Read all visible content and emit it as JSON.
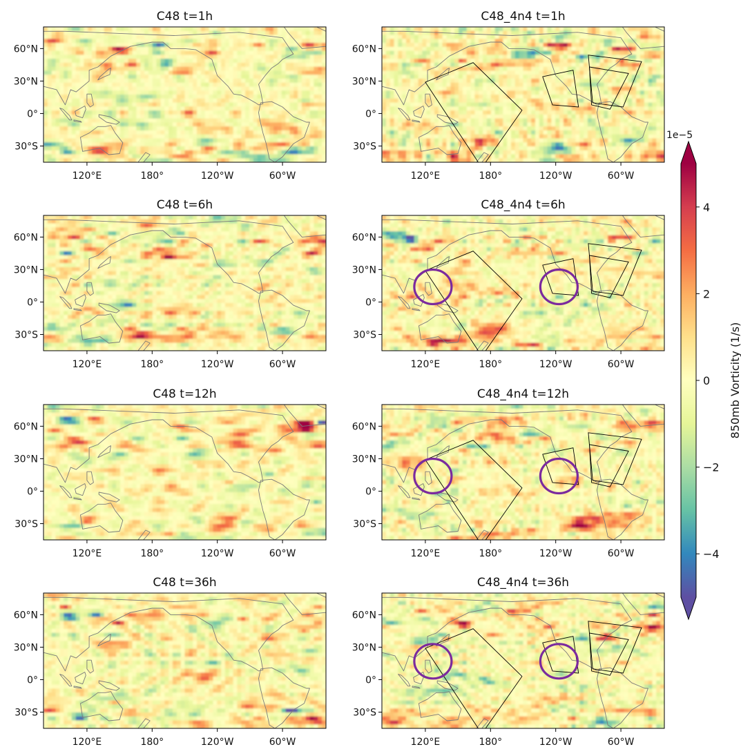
{
  "chart_data": {
    "type": "heatmap",
    "colorbar": {
      "label": "850mb Vorticity (1/s)",
      "offset_text": "1e−5",
      "ticks": [
        4,
        2,
        0,
        -2,
        -4
      ],
      "tick_labels": [
        "4",
        "2",
        "0",
        "−2",
        "−4"
      ],
      "range": [
        -5,
        5
      ],
      "colormap": "Spectral_r",
      "extend": "both",
      "stops": [
        "#5e4fa2",
        "#3288bd",
        "#66c2a5",
        "#abdda4",
        "#e6f598",
        "#ffffbf",
        "#fee08b",
        "#fdae61",
        "#f46d43",
        "#d53e4f",
        "#9e0142"
      ]
    },
    "lat_tick_labels": [
      "60°N",
      "30°N",
      "0°",
      "30°S"
    ],
    "lon_tick_labels": [
      "120°E",
      "180°",
      "120°W",
      "60°W"
    ],
    "lat_ticks": [
      60,
      30,
      0,
      -30
    ],
    "lon_ticks": [
      120,
      180,
      240,
      300
    ],
    "extent": {
      "lon": [
        80,
        340
      ],
      "lat": [
        -45,
        80
      ]
    },
    "panels": [
      {
        "title": "C48 t=1h",
        "row": 0,
        "col": 0,
        "nests": false,
        "circles": []
      },
      {
        "title": "C48_4n4 t=1h",
        "row": 0,
        "col": 1,
        "nests": true,
        "circles": []
      },
      {
        "title": "C48 t=6h",
        "row": 1,
        "col": 0,
        "nests": false,
        "circles": []
      },
      {
        "title": "C48_4n4 t=6h",
        "row": 1,
        "col": 1,
        "nests": true,
        "circles": [
          {
            "lon": 127,
            "lat": 14
          },
          {
            "lon": 243,
            "lat": 14
          }
        ]
      },
      {
        "title": "C48 t=12h",
        "row": 2,
        "col": 0,
        "nests": false,
        "circles": []
      },
      {
        "title": "C48_4n4 t=12h",
        "row": 2,
        "col": 1,
        "nests": true,
        "circles": [
          {
            "lon": 127,
            "lat": 14
          },
          {
            "lon": 243,
            "lat": 14
          }
        ]
      },
      {
        "title": "C48 t=36h",
        "row": 3,
        "col": 0,
        "nests": false,
        "circles": []
      },
      {
        "title": "C48_4n4 t=36h",
        "row": 3,
        "col": 1,
        "nests": true,
        "circles": [
          {
            "lon": 127,
            "lat": 17
          },
          {
            "lon": 243,
            "lat": 17
          }
        ]
      }
    ],
    "nest_domains": [
      {
        "name": "western-pacific",
        "corners_lonlat": [
          [
            120,
            29
          ],
          [
            164,
            47
          ],
          [
            209,
            3
          ],
          [
            172,
            -50
          ]
        ]
      },
      {
        "name": "eastern-pacific",
        "corners_lonlat": [
          [
            228,
            34
          ],
          [
            256,
            40
          ],
          [
            261,
            6
          ],
          [
            237,
            8
          ]
        ]
      },
      {
        "name": "atlantic-outer",
        "corners_lonlat": [
          [
            270,
            54
          ],
          [
            319,
            48
          ],
          [
            302,
            6
          ],
          [
            274,
            10
          ]
        ]
      },
      {
        "name": "atlantic-inner",
        "corners_lonlat": [
          [
            271,
            43
          ],
          [
            307,
            37
          ],
          [
            290,
            4
          ],
          [
            273,
            8
          ]
        ]
      }
    ]
  }
}
